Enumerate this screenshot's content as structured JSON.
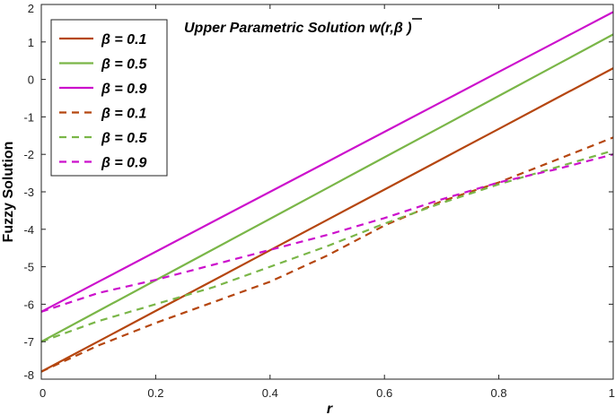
{
  "chart_data": {
    "type": "line",
    "title": "Upper Parametric Solution w(r,β )",
    "xlabel": "r",
    "ylabel": "Fuzzy  Solution",
    "xlim": [
      0,
      1
    ],
    "ylim": [
      -8,
      2
    ],
    "xticks": [
      0,
      0.2,
      0.4,
      0.6,
      0.8,
      1
    ],
    "xtick_labels": [
      "0",
      "0.2",
      "0.4",
      "0.6",
      "0.8",
      "1"
    ],
    "yticks": [
      -8,
      -7,
      -6,
      -5,
      -4,
      -3,
      -2,
      -1,
      0,
      1,
      2
    ],
    "ytick_labels": [
      "-8",
      "-7",
      "-6",
      "-5",
      "-4",
      "-3",
      "-2",
      "-1",
      "0",
      "1",
      "2"
    ],
    "grid": false,
    "legend_position": "top-left",
    "x": [
      0,
      0.1,
      0.2,
      0.3,
      0.4,
      0.5,
      0.6,
      0.7,
      0.8,
      0.9,
      1.0
    ],
    "series": [
      {
        "name": "β = 0.1",
        "style": "solid",
        "color": "#b5460f",
        "values": [
          -7.8,
          -6.99,
          -6.18,
          -5.37,
          -4.56,
          -3.75,
          -2.94,
          -2.13,
          -1.32,
          -0.51,
          0.3
        ]
      },
      {
        "name": "β = 0.5",
        "style": "solid",
        "color": "#7ab648",
        "values": [
          -7.0,
          -6.18,
          -5.36,
          -4.54,
          -3.72,
          -2.9,
          -2.08,
          -1.26,
          -0.44,
          0.38,
          1.2
        ]
      },
      {
        "name": "β = 0.9",
        "style": "solid",
        "color": "#cc11cc",
        "values": [
          -6.2,
          -5.4,
          -4.6,
          -3.8,
          -3.0,
          -2.2,
          -1.4,
          -0.6,
          0.2,
          1.0,
          1.8
        ]
      },
      {
        "name": "β = 0.1",
        "style": "dashed",
        "color": "#b5460f",
        "values": [
          -7.8,
          -7.1,
          -6.5,
          -5.95,
          -5.4,
          -4.7,
          -3.9,
          -3.25,
          -2.75,
          -2.15,
          -1.55
        ]
      },
      {
        "name": "β = 0.5",
        "style": "dashed",
        "color": "#7ab648",
        "values": [
          -7.0,
          -6.45,
          -6.0,
          -5.55,
          -5.0,
          -4.45,
          -3.85,
          -3.3,
          -2.8,
          -2.35,
          -1.9
        ]
      },
      {
        "name": "β = 0.9",
        "style": "dashed",
        "color": "#cc11cc",
        "values": [
          -6.2,
          -5.7,
          -5.35,
          -4.95,
          -4.55,
          -4.15,
          -3.7,
          -3.2,
          -2.75,
          -2.4,
          -2.0
        ]
      }
    ]
  }
}
